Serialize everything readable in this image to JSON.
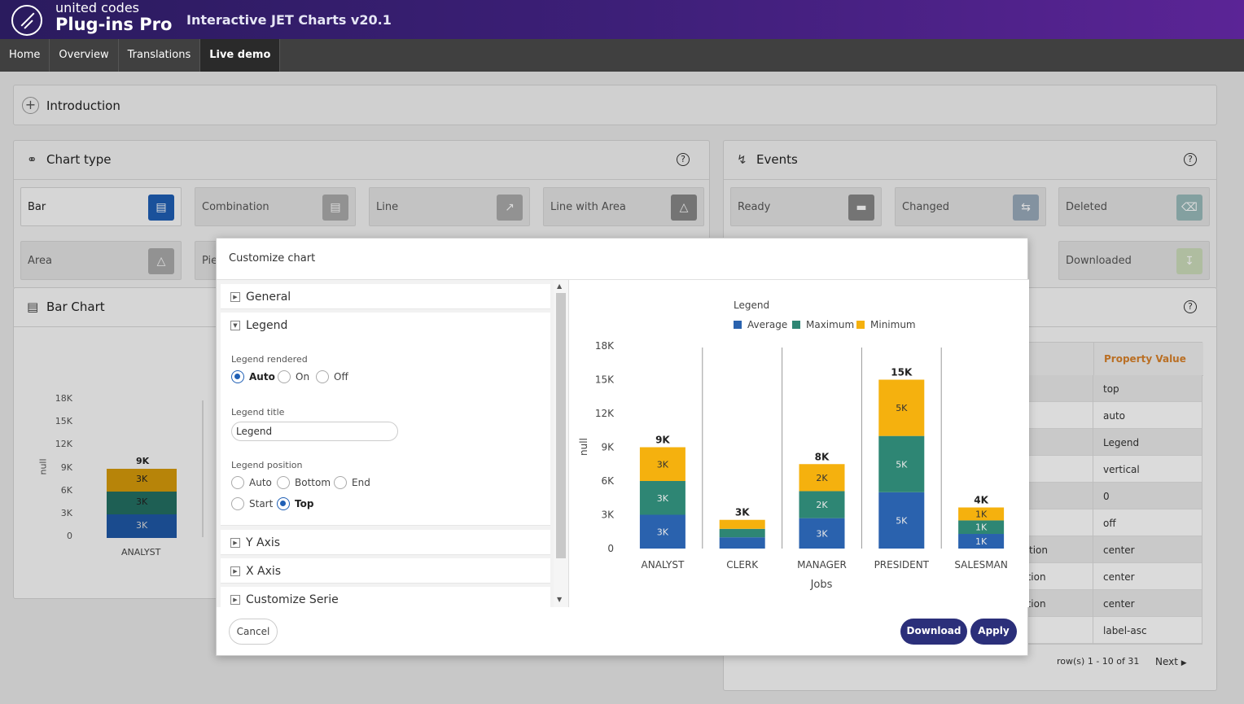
{
  "brand": {
    "top": "united codes",
    "bottom": "Plug-ins Pro",
    "app_title": "Interactive JET Charts v20.1"
  },
  "nav": [
    {
      "label": "Home"
    },
    {
      "label": "Overview"
    },
    {
      "label": "Translations"
    },
    {
      "label": "Live demo"
    }
  ],
  "introduction": {
    "title": "Introduction"
  },
  "chart_type": {
    "title": "Chart type",
    "tiles": [
      {
        "label": "Bar",
        "icon": "bar-chart-icon"
      },
      {
        "label": "Combination",
        "icon": "combination-chart-icon"
      },
      {
        "label": "Line",
        "icon": "line-chart-icon"
      },
      {
        "label": "Line with Area",
        "icon": "line-area-chart-icon"
      },
      {
        "label": "Area",
        "icon": "area-chart-icon"
      },
      {
        "label": "Pie",
        "icon": "pie-chart-icon"
      }
    ]
  },
  "events": {
    "title": "Events",
    "tiles": [
      {
        "label": "Ready"
      },
      {
        "label": "Changed"
      },
      {
        "label": "Deleted"
      },
      {
        "label": "Downloaded"
      }
    ]
  },
  "bar_chart_region": {
    "title": "Bar Chart",
    "y_ticks": [
      "18K",
      "15K",
      "12K",
      "9K",
      "6K",
      "3K",
      "0"
    ],
    "y_title": "null",
    "category": "ANALYST",
    "total": "9K",
    "seg_labels": [
      "3K",
      "3K",
      "3K"
    ]
  },
  "properties": {
    "header": "Property Value",
    "values": [
      "top",
      "auto",
      "Legend",
      "vertical",
      "0",
      "off",
      "center",
      "center",
      "center",
      "label-asc"
    ],
    "partial_labels": [
      "tion",
      "sition",
      "sition"
    ],
    "pagination": "row(s) 1 - 10 of 31",
    "next": "Next"
  },
  "dialog": {
    "title": "Customize chart",
    "sections": {
      "general": "General",
      "legend": "Legend",
      "y_axis": "Y Axis",
      "x_axis": "X Axis",
      "customize_serie": "Customize Serie"
    },
    "legend_rendered": {
      "label": "Legend rendered",
      "options": [
        "Auto",
        "On",
        "Off"
      ],
      "selected": "Auto"
    },
    "legend_title": {
      "label": "Legend title",
      "value": "Legend"
    },
    "legend_position": {
      "label": "Legend position",
      "options": [
        "Auto",
        "Bottom",
        "End",
        "Start",
        "Top"
      ],
      "selected": "Top"
    },
    "buttons": {
      "cancel": "Cancel",
      "download": "Download",
      "apply": "Apply"
    }
  },
  "chart_data": {
    "type": "bar",
    "stacked": true,
    "title": "",
    "xlabel": "Jobs",
    "ylabel": "null",
    "legend_title": "Legend",
    "legend_position": "top",
    "categories": [
      "ANALYST",
      "CLERK",
      "MANAGER",
      "PRESIDENT",
      "SALESMAN"
    ],
    "y_ticks": [
      "0",
      "3K",
      "6K",
      "9K",
      "12K",
      "15K",
      "18K"
    ],
    "ylim": [
      0,
      18000
    ],
    "series": [
      {
        "name": "Average",
        "color": "#2a62ae",
        "values": [
          3000,
          1000,
          2700,
          5000,
          1300
        ],
        "labels": [
          "3K",
          "",
          "3K",
          "5K",
          "1K"
        ]
      },
      {
        "name": "Maximum",
        "color": "#2e8674",
        "values": [
          3000,
          750,
          2400,
          5000,
          1200
        ],
        "labels": [
          "3K",
          "",
          "2K",
          "5K",
          "1K"
        ]
      },
      {
        "name": "Minimum",
        "color": "#f5b10e",
        "values": [
          3000,
          800,
          2400,
          5000,
          1150
        ],
        "labels": [
          "3K",
          "",
          "2K",
          "5K",
          "1K"
        ]
      }
    ],
    "totals": [
      "9K",
      "3K",
      "8K",
      "15K",
      "4K"
    ]
  }
}
